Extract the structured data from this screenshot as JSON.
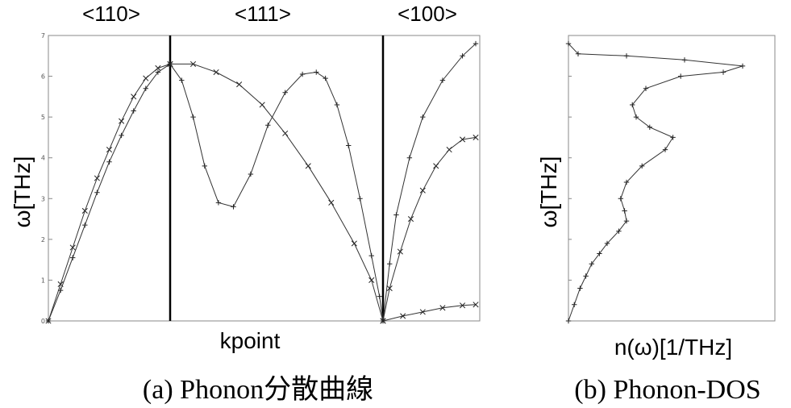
{
  "figure": {
    "caption_a": "(a) Phonon分散曲線",
    "caption_b": "(b) Phonon-DOS"
  },
  "chart_data": [
    {
      "type": "line",
      "title": "",
      "direction_labels": [
        "<110>",
        "<111>",
        "<100>"
      ],
      "xlabel": "kpoint",
      "ylabel": "ω[THz]",
      "ylim": [
        0,
        7
      ],
      "yticks": [
        0,
        1,
        2,
        3,
        4,
        5,
        6,
        7
      ],
      "grid": false,
      "legend": "none",
      "series": [
        {
          "segment": "<110>",
          "marker": "x",
          "points": [
            [
              0,
              0
            ],
            [
              0.1,
              0.9
            ],
            [
              0.2,
              1.8
            ],
            [
              0.3,
              2.7
            ],
            [
              0.4,
              3.5
            ],
            [
              0.5,
              4.2
            ],
            [
              0.6,
              4.9
            ],
            [
              0.7,
              5.5
            ],
            [
              0.8,
              5.95
            ],
            [
              0.9,
              6.2
            ],
            [
              1,
              6.3
            ]
          ]
        },
        {
          "segment": "<110>",
          "marker": "+",
          "points": [
            [
              0,
              0
            ],
            [
              0.1,
              0.75
            ],
            [
              0.2,
              1.55
            ],
            [
              0.3,
              2.35
            ],
            [
              0.4,
              3.15
            ],
            [
              0.5,
              3.9
            ],
            [
              0.6,
              4.55
            ],
            [
              0.7,
              5.15
            ],
            [
              0.8,
              5.7
            ],
            [
              0.9,
              6.1
            ],
            [
              1,
              6.3
            ]
          ]
        },
        {
          "segment": "<111>",
          "marker": "+",
          "points": [
            [
              1,
              6.3
            ],
            [
              1.1,
              5.9
            ],
            [
              1.2,
              5.0
            ],
            [
              1.3,
              3.8
            ],
            [
              1.42,
              2.9
            ],
            [
              1.55,
              2.8
            ],
            [
              1.7,
              3.6
            ],
            [
              1.85,
              4.8
            ],
            [
              2.0,
              5.6
            ],
            [
              2.15,
              6.05
            ],
            [
              2.27,
              6.1
            ],
            [
              2.35,
              5.95
            ],
            [
              2.45,
              5.3
            ],
            [
              2.55,
              4.3
            ],
            [
              2.65,
              3.0
            ],
            [
              2.75,
              1.6
            ],
            [
              2.82,
              0.6
            ],
            [
              2.85,
              0
            ]
          ]
        },
        {
          "segment": "<111>",
          "marker": "x",
          "points": [
            [
              1,
              6.3
            ],
            [
              1.2,
              6.3
            ],
            [
              1.4,
              6.1
            ],
            [
              1.6,
              5.8
            ],
            [
              1.8,
              5.3
            ],
            [
              2.0,
              4.6
            ],
            [
              2.2,
              3.8
            ],
            [
              2.4,
              2.9
            ],
            [
              2.6,
              1.9
            ],
            [
              2.75,
              1.0
            ],
            [
              2.85,
              0
            ]
          ]
        },
        {
          "segment": "<100>",
          "marker": "+",
          "points": [
            [
              2.85,
              0
            ],
            [
              2.9,
              1.4
            ],
            [
              2.95,
              2.6
            ],
            [
              3.05,
              4.0
            ],
            [
              3.15,
              5.0
            ],
            [
              3.3,
              5.9
            ],
            [
              3.45,
              6.5
            ],
            [
              3.55,
              6.8
            ]
          ]
        },
        {
          "segment": "<100>",
          "marker": "x",
          "points": [
            [
              2.85,
              0
            ],
            [
              2.9,
              0.8
            ],
            [
              2.98,
              1.7
            ],
            [
              3.06,
              2.5
            ],
            [
              3.15,
              3.2
            ],
            [
              3.25,
              3.8
            ],
            [
              3.35,
              4.2
            ],
            [
              3.45,
              4.45
            ],
            [
              3.55,
              4.5
            ]
          ]
        },
        {
          "segment": "<100>",
          "marker": "x",
          "points": [
            [
              2.85,
              0
            ],
            [
              3.0,
              0.12
            ],
            [
              3.15,
              0.22
            ],
            [
              3.3,
              0.32
            ],
            [
              3.45,
              0.38
            ],
            [
              3.55,
              0.4
            ]
          ]
        }
      ]
    },
    {
      "type": "line",
      "title": "",
      "xlabel": "n(ω)[1/THz]",
      "ylabel": "ω[THz]",
      "ylim": [
        0,
        7
      ],
      "grid": false,
      "legend": "none",
      "series": [
        {
          "marker": "+",
          "points": [
            [
              0,
              0
            ],
            [
              0.03,
              0.4
            ],
            [
              0.06,
              0.8
            ],
            [
              0.09,
              1.1
            ],
            [
              0.12,
              1.4
            ],
            [
              0.16,
              1.65
            ],
            [
              0.2,
              1.9
            ],
            [
              0.26,
              2.2
            ],
            [
              0.3,
              2.45
            ],
            [
              0.29,
              2.7
            ],
            [
              0.27,
              3.0
            ],
            [
              0.3,
              3.4
            ],
            [
              0.38,
              3.8
            ],
            [
              0.5,
              4.2
            ],
            [
              0.54,
              4.5
            ],
            [
              0.42,
              4.75
            ],
            [
              0.35,
              5.0
            ],
            [
              0.33,
              5.3
            ],
            [
              0.4,
              5.7
            ],
            [
              0.58,
              6.0
            ],
            [
              0.8,
              6.1
            ],
            [
              0.9,
              6.25
            ],
            [
              0.6,
              6.4
            ],
            [
              0.3,
              6.5
            ],
            [
              0.05,
              6.55
            ],
            [
              0,
              6.8
            ]
          ]
        }
      ]
    }
  ]
}
